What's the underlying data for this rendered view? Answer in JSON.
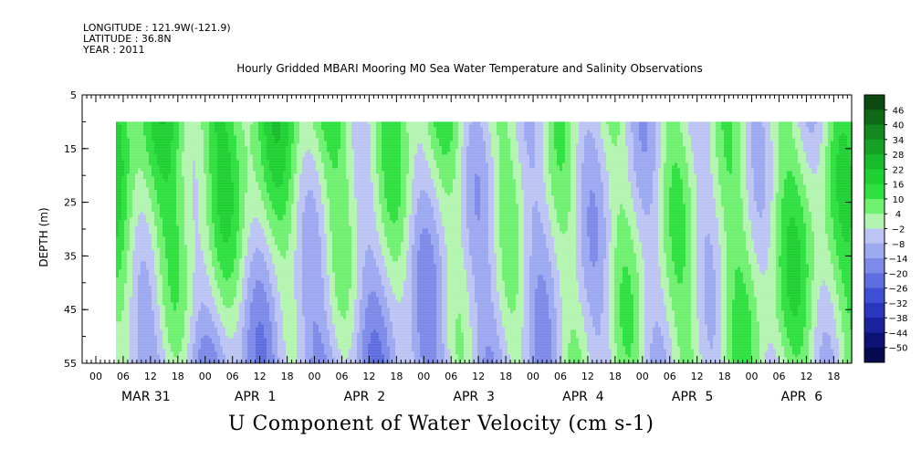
{
  "header": {
    "longitude": "LONGITUDE : 121.9W(-121.9)",
    "latitude": "LATITUDE : 36.8N",
    "year": "YEAR : 2011",
    "title": "Hourly Gridded MBARI Mooring M0 Sea Water Temperature and Salinity Observations"
  },
  "chart_data": {
    "type": "heatmap",
    "title": "Hourly Gridded MBARI Mooring M0 Sea Water Temperature and Salinity Observations",
    "xlabel": "U Component of Water Velocity (cm s-1)",
    "ylabel": "DEPTH (m)",
    "ylim": [
      5,
      55
    ],
    "y_reversed": true,
    "y_ticks": [
      5,
      15,
      25,
      35,
      45,
      55
    ],
    "data_depth_range": [
      10,
      55
    ],
    "x_hour_ticks": [
      "00",
      "06",
      "12",
      "18",
      "00",
      "06",
      "12",
      "18",
      "00",
      "06",
      "12",
      "18",
      "00",
      "06",
      "12",
      "18",
      "00",
      "06",
      "12",
      "18",
      "00",
      "06",
      "12",
      "18",
      "00",
      "06",
      "12",
      "18"
    ],
    "x_day_labels": [
      "MAR 31",
      "APR  1",
      "APR  2",
      "APR  3",
      "APR  4",
      "APR  5",
      "APR  6"
    ],
    "colorbar": {
      "levels": [
        46,
        40,
        34,
        28,
        22,
        16,
        10,
        4,
        -2,
        -8,
        -14,
        -20,
        -26,
        -32,
        -38,
        -44,
        -50
      ],
      "labels": [
        "46",
        "40",
        "34",
        "28",
        "22",
        "16",
        "10",
        "4",
        "−2",
        "−8",
        "−14",
        "−20",
        "−26",
        "−32",
        "−38",
        "−44",
        "−50"
      ],
      "colors": [
        "#0c4a12",
        "#0f6a18",
        "#128a1e",
        "#16a325",
        "#18bb2b",
        "#1fd033",
        "#2ee040",
        "#6ff070",
        "#b3f5b0",
        "#bcc4f4",
        "#9ca8f0",
        "#7d8ae8",
        "#5e6ee0",
        "#3f4fd6",
        "#2a35c0",
        "#1a229e",
        "#0c1276",
        "#050a50"
      ]
    },
    "field_note": "U velocity field: alternating positive (green, ~+4 to +22) and negative (blue, ~-2 to -26) bands through depth, tidal-period variations"
  }
}
